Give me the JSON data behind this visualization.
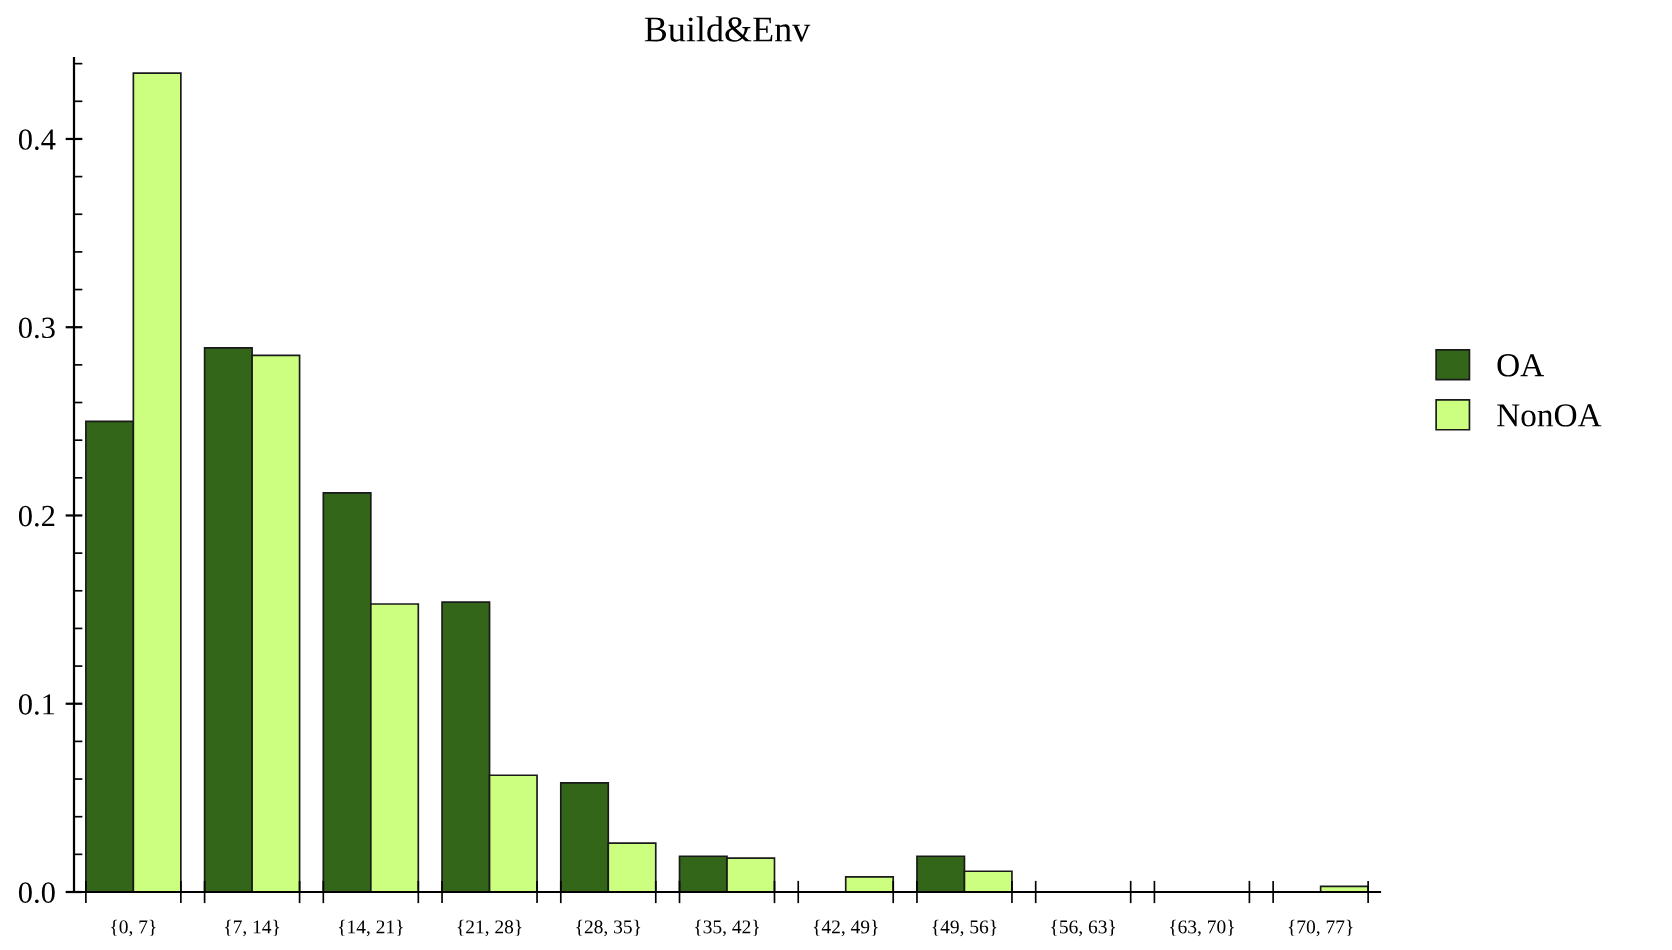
{
  "chart_data": {
    "type": "bar",
    "title": "Build&Env",
    "categories": [
      "{0, 7}",
      "{7, 14}",
      "{14, 21}",
      "{21, 28}",
      "{28, 35}",
      "{35, 42}",
      "{42, 49}",
      "{49, 56}",
      "{56, 63}",
      "{63, 70}",
      "{70, 77}"
    ],
    "series": [
      {
        "name": "OA",
        "color": "#336619",
        "values": [
          0.25,
          0.289,
          0.212,
          0.154,
          0.058,
          0.019,
          0,
          0.019,
          0,
          0,
          0
        ]
      },
      {
        "name": "NonOA",
        "color": "#ccff80",
        "values": [
          0.435,
          0.285,
          0.153,
          0.062,
          0.026,
          0.018,
          0.008,
          0.011,
          0,
          0,
          0.003
        ]
      }
    ],
    "ylim": [
      0,
      0.443
    ],
    "yticks": [
      {
        "value": 0,
        "label": "0.0"
      },
      0.1,
      0.2,
      0.3,
      0.4
    ],
    "grid": false,
    "legend": "right"
  }
}
